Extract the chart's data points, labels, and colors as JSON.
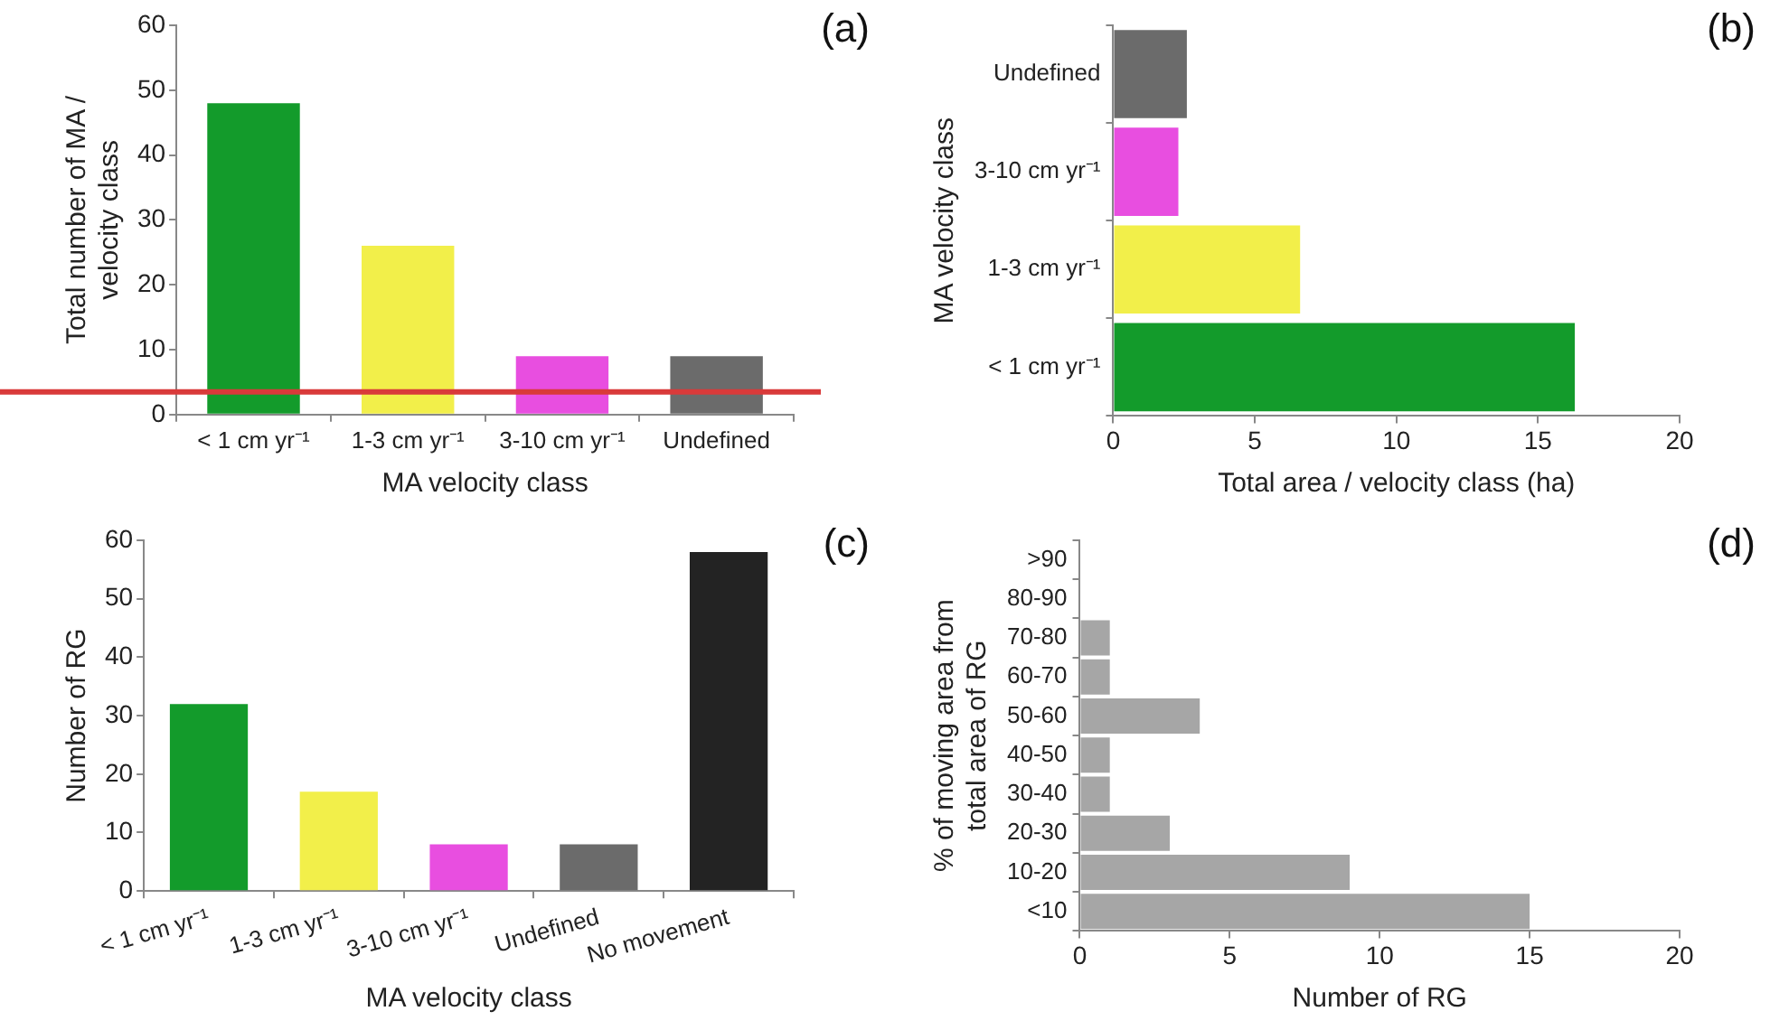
{
  "chart_data": [
    {
      "type": "bar",
      "categories": [
        "< 1 cm yr⁻¹",
        "1-3 cm yr⁻¹",
        "3-10 cm yr⁻¹",
        "Undefined"
      ],
      "values": [
        48,
        26,
        9,
        9
      ],
      "colors": [
        "#139b2b",
        "#f2ef4a",
        "#e84ee0",
        "#6b6b6b"
      ],
      "xlabel": "MA velocity class",
      "ylabel": "Total number of MA / velocity class",
      "ylim": [
        0,
        60
      ],
      "yticks": [
        0,
        10,
        20,
        30,
        40,
        50,
        60
      ],
      "grid": false,
      "annotations": [
        "(a)"
      ],
      "ref_lines": [
        {
          "axis": "y",
          "value": 3.5,
          "label": null,
          "color": "#d93a3a"
        }
      ]
    },
    {
      "type": "bar",
      "orientation": "horizontal",
      "categories": [
        "Undefined",
        "3-10 cm yr⁻¹",
        "1-3 cm yr⁻¹",
        "< 1 cm yr⁻¹"
      ],
      "values": [
        2.6,
        2.3,
        6.6,
        16.3
      ],
      "colors": [
        "#6b6b6b",
        "#e84ee0",
        "#f2ef4a",
        "#139b2b"
      ],
      "xlabel": "Total area / velocity class (ha)",
      "ylabel": "MA velocity class",
      "xlim": [
        0,
        20
      ],
      "xticks": [
        0,
        5,
        10,
        15,
        20
      ],
      "grid": false,
      "annotations": [
        "(b)"
      ]
    },
    {
      "type": "bar",
      "categories": [
        "< 1 cm yr⁻¹",
        "1-3 cm yr⁻¹",
        "3-10 cm yr⁻¹",
        "Undefined",
        "No movement"
      ],
      "values": [
        32,
        17,
        8,
        8,
        58
      ],
      "colors": [
        "#139b2b",
        "#f2ef4a",
        "#e84ee0",
        "#6b6b6b",
        "#232323"
      ],
      "xlabel": "MA velocity class",
      "ylabel": "Number of RG",
      "ylim": [
        0,
        60
      ],
      "yticks": [
        0,
        10,
        20,
        30,
        40,
        50,
        60
      ],
      "grid": false,
      "annotations": [
        "(c)"
      ]
    },
    {
      "type": "bar",
      "orientation": "horizontal",
      "categories": [
        ">90",
        "80-90",
        "70-80",
        "60-70",
        "50-60",
        "40-50",
        "30-40",
        "20-30",
        "10-20",
        "<10"
      ],
      "values": [
        0,
        0,
        1,
        1,
        4,
        1,
        1,
        3,
        9,
        15
      ],
      "color": "#a6a6a6",
      "xlabel": "Number of RG",
      "ylabel": "% of moving area from total area of RG",
      "xlim": [
        0,
        20
      ],
      "xticks": [
        0,
        5,
        10,
        15,
        20
      ],
      "grid": false,
      "annotations": [
        "(d)"
      ]
    }
  ]
}
